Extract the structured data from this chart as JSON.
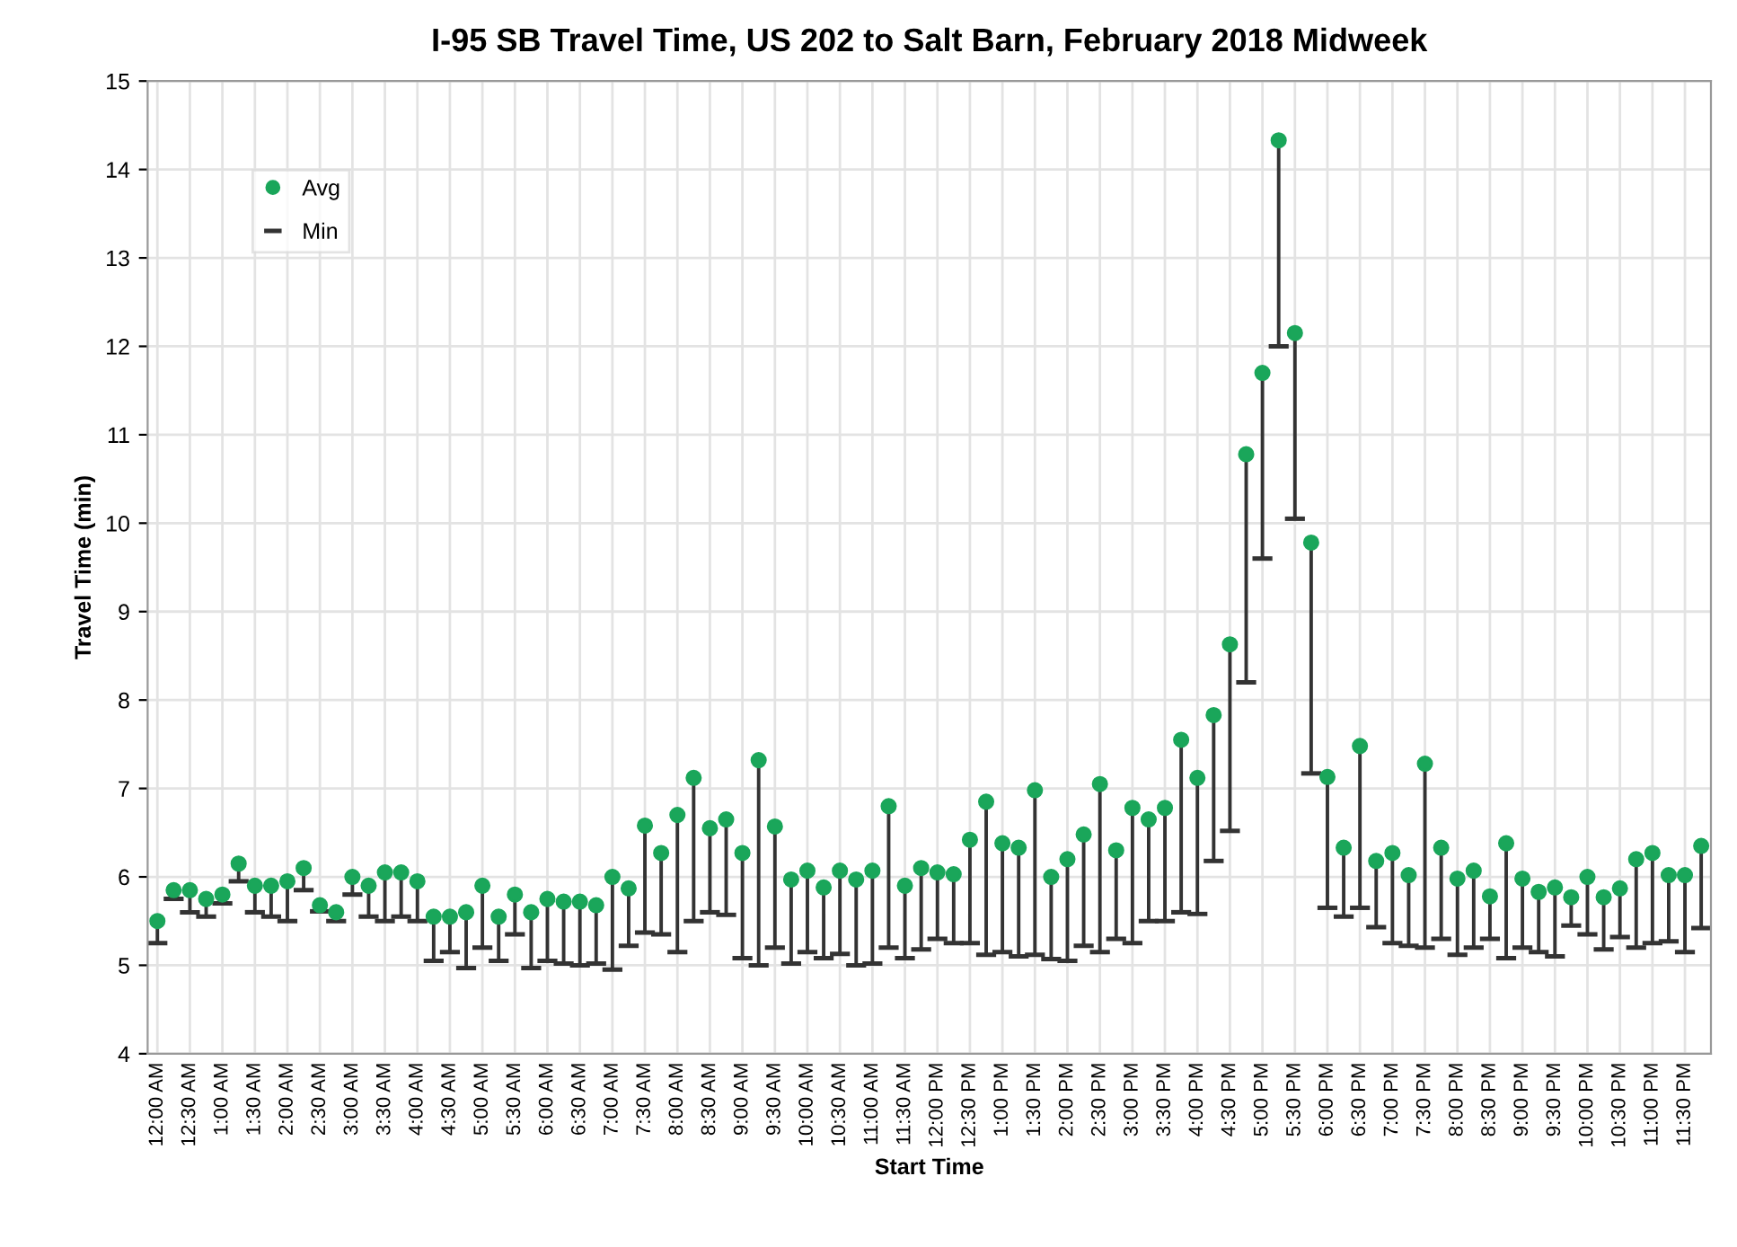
{
  "chart_data": {
    "type": "scatter",
    "title": "I-95 SB Travel Time, US 202 to Salt Barn, February 2018 Midweek",
    "xlabel": "Start Time",
    "ylabel": "Travel Time (min)",
    "categories": [
      "12:00 AM",
      null,
      "12:30 AM",
      null,
      "1:00 AM",
      null,
      "1:30 AM",
      null,
      "2:00 AM",
      null,
      "2:30 AM",
      null,
      "3:00 AM",
      null,
      "3:30 AM",
      null,
      "4:00 AM",
      null,
      "4:30 AM",
      null,
      "5:00 AM",
      null,
      "5:30 AM",
      null,
      "6:00 AM",
      null,
      "6:30 AM",
      null,
      "7:00 AM",
      null,
      "7:30 AM",
      null,
      "8:00 AM",
      null,
      "8:30 AM",
      null,
      "9:00 AM",
      null,
      "9:30 AM",
      null,
      "10:00 AM",
      null,
      "10:30 AM",
      null,
      "11:00 AM",
      null,
      "11:30 AM",
      null,
      "12:00 PM",
      null,
      "12:30 PM",
      null,
      "1:00 PM",
      null,
      "1:30 PM",
      null,
      "2:00 PM",
      null,
      "2:30 PM",
      null,
      "3:00 PM",
      null,
      "3:30 PM",
      null,
      "4:00 PM",
      null,
      "4:30 PM",
      null,
      "5:00 PM",
      null,
      "5:30 PM",
      null,
      "6:00 PM",
      null,
      "6:30 PM",
      null,
      "7:00 PM",
      null,
      "7:30 PM",
      null,
      "8:00 PM",
      null,
      "8:30 PM",
      null,
      "9:00 PM",
      null,
      "9:30 PM",
      null,
      "10:00 PM",
      null,
      "10:30 PM",
      null,
      "11:00 PM",
      null,
      "11:30 PM",
      null
    ],
    "series": [
      {
        "name": "Avg",
        "marker": "circle",
        "color": "#1aa65a",
        "values": [
          5.5,
          5.85,
          5.85,
          5.75,
          5.8,
          6.15,
          5.9,
          5.9,
          5.95,
          6.1,
          5.68,
          5.6,
          6.0,
          5.9,
          6.05,
          6.05,
          5.95,
          5.55,
          5.55,
          5.6,
          5.9,
          5.55,
          5.8,
          5.6,
          5.75,
          5.72,
          5.72,
          5.68,
          6.0,
          5.87,
          6.58,
          6.27,
          6.7,
          7.12,
          6.55,
          6.65,
          6.27,
          7.32,
          6.57,
          5.97,
          6.07,
          5.88,
          6.07,
          5.97,
          6.07,
          6.8,
          5.9,
          6.1,
          6.05,
          6.03,
          6.42,
          6.85,
          6.38,
          6.33,
          6.98,
          6.0,
          6.2,
          6.48,
          7.05,
          6.3,
          6.78,
          6.65,
          6.78,
          7.55,
          7.12,
          7.83,
          8.63,
          10.78,
          11.7,
          14.33,
          12.15,
          9.78,
          7.13,
          6.33,
          7.48,
          6.18,
          6.27,
          6.02,
          7.28,
          6.33,
          5.98,
          6.07,
          5.78,
          6.38,
          5.98,
          5.83,
          5.88,
          5.77,
          6.0,
          5.77,
          5.87,
          6.2,
          6.27,
          6.02,
          6.02,
          6.35
        ],
        "errors": [
          [
            5.25,
            5.5
          ],
          [
            5.75,
            5.85
          ],
          [
            5.6,
            5.85
          ],
          [
            5.55,
            5.75
          ],
          [
            5.7,
            5.8
          ],
          [
            5.95,
            6.15
          ],
          [
            5.6,
            5.9
          ],
          [
            5.55,
            5.9
          ],
          [
            5.5,
            5.95
          ],
          [
            5.85,
            6.1
          ],
          [
            5.61,
            5.68
          ],
          [
            5.5,
            5.6
          ],
          [
            5.8,
            6.0
          ],
          [
            5.55,
            5.9
          ],
          [
            5.5,
            6.05
          ],
          [
            5.55,
            6.05
          ],
          [
            5.5,
            5.95
          ],
          [
            5.05,
            5.55
          ],
          [
            5.15,
            5.55
          ],
          [
            4.97,
            5.6
          ],
          [
            5.2,
            5.9
          ],
          [
            5.05,
            5.55
          ],
          [
            5.35,
            5.8
          ],
          [
            4.97,
            5.6
          ],
          [
            5.05,
            5.75
          ],
          [
            5.02,
            5.72
          ],
          [
            5.0,
            5.72
          ],
          [
            5.02,
            5.68
          ],
          [
            4.95,
            6.0
          ],
          [
            5.22,
            5.87
          ],
          [
            5.37,
            6.58
          ],
          [
            5.35,
            6.27
          ],
          [
            5.15,
            6.7
          ],
          [
            5.5,
            7.12
          ],
          [
            5.6,
            6.55
          ],
          [
            5.57,
            6.65
          ],
          [
            5.08,
            6.27
          ],
          [
            5.0,
            7.32
          ],
          [
            5.2,
            6.57
          ],
          [
            5.02,
            5.97
          ],
          [
            5.15,
            6.07
          ],
          [
            5.08,
            5.88
          ],
          [
            5.13,
            6.07
          ],
          [
            5.0,
            5.97
          ],
          [
            5.02,
            6.07
          ],
          [
            5.2,
            6.8
          ],
          [
            5.08,
            5.9
          ],
          [
            5.18,
            6.1
          ],
          [
            5.3,
            6.05
          ],
          [
            5.25,
            6.03
          ],
          [
            5.25,
            6.42
          ],
          [
            5.12,
            6.85
          ],
          [
            5.15,
            6.38
          ],
          [
            5.1,
            6.33
          ],
          [
            5.12,
            6.98
          ],
          [
            5.07,
            6.0
          ],
          [
            5.05,
            6.2
          ],
          [
            5.22,
            6.48
          ],
          [
            5.15,
            7.05
          ],
          [
            5.3,
            6.3
          ],
          [
            5.25,
            6.78
          ],
          [
            5.5,
            6.65
          ],
          [
            5.5,
            6.78
          ],
          [
            5.6,
            7.55
          ],
          [
            5.58,
            7.12
          ],
          [
            6.18,
            7.83
          ],
          [
            6.52,
            8.63
          ],
          [
            8.2,
            10.78
          ],
          [
            9.6,
            11.7
          ],
          [
            12.0,
            14.33
          ],
          [
            10.05,
            12.15
          ],
          [
            7.17,
            9.78
          ],
          [
            5.65,
            7.13
          ],
          [
            5.55,
            6.33
          ],
          [
            5.65,
            7.48
          ],
          [
            5.43,
            6.18
          ],
          [
            5.25,
            6.27
          ],
          [
            5.22,
            6.02
          ],
          [
            5.2,
            7.28
          ],
          [
            5.3,
            6.33
          ],
          [
            5.12,
            5.98
          ],
          [
            5.2,
            6.07
          ],
          [
            5.3,
            5.78
          ],
          [
            5.08,
            6.38
          ],
          [
            5.2,
            5.98
          ],
          [
            5.15,
            5.83
          ],
          [
            5.1,
            5.88
          ],
          [
            5.45,
            5.77
          ],
          [
            5.35,
            6.0
          ],
          [
            5.18,
            5.77
          ],
          [
            5.32,
            5.87
          ],
          [
            5.2,
            6.2
          ],
          [
            5.25,
            6.27
          ],
          [
            5.27,
            6.02
          ],
          [
            5.15,
            6.02
          ],
          [
            5.42,
            6.35
          ]
        ]
      }
    ],
    "annotations": [
      "Min"
    ],
    "ylim": [
      4,
      15
    ],
    "yticks": [
      4,
      5,
      6,
      7,
      8,
      9,
      10,
      11,
      12,
      13,
      14,
      15
    ],
    "grid": true,
    "legend": "top left"
  }
}
